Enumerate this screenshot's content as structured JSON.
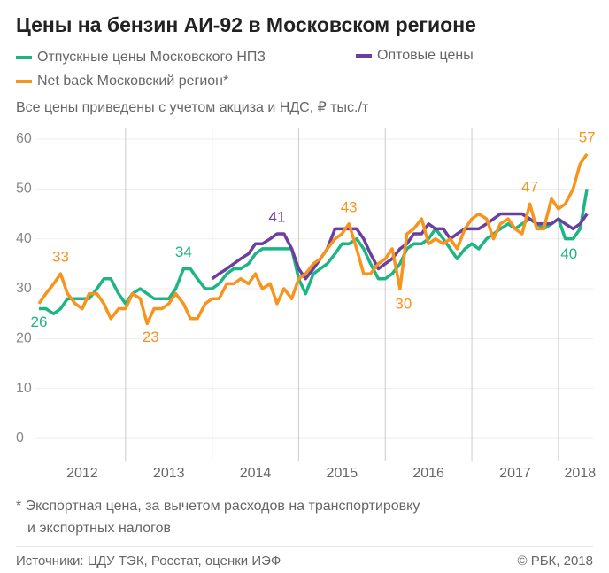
{
  "chart_data": {
    "type": "line",
    "title": "Цены на бензин АИ-92 в Московском регионе",
    "subtitle": "Все цены приведены с учетом акциза и НДС, ₽ тыс./т",
    "footnote": [
      "* Экспортная цена, за вычетом расходов на транспортировку",
      "и экспортных налогов"
    ],
    "source": "Источники: ЦДУ ТЭК, Росстат, оценки ИЭФ",
    "copyright": "© РБК, 2018",
    "x": [
      2012,
      2012.08,
      2012.17,
      2012.25,
      2012.33,
      2012.42,
      2012.5,
      2012.58,
      2012.67,
      2012.75,
      2012.83,
      2012.92,
      2013,
      2013.08,
      2013.17,
      2013.25,
      2013.33,
      2013.42,
      2013.5,
      2013.58,
      2013.67,
      2013.75,
      2013.83,
      2013.92,
      2014,
      2014.08,
      2014.17,
      2014.25,
      2014.33,
      2014.42,
      2014.5,
      2014.58,
      2014.67,
      2014.75,
      2014.83,
      2014.92,
      2015,
      2015.08,
      2015.17,
      2015.25,
      2015.33,
      2015.42,
      2015.5,
      2015.58,
      2015.67,
      2015.75,
      2015.83,
      2015.92,
      2016,
      2016.08,
      2016.17,
      2016.25,
      2016.33,
      2016.42,
      2016.5,
      2016.58,
      2016.67,
      2016.75,
      2016.83,
      2016.92,
      2017,
      2017.08,
      2017.17,
      2017.25,
      2017.33,
      2017.42,
      2017.5,
      2017.58,
      2017.67,
      2017.75,
      2017.83,
      2017.92,
      2018,
      2018.08,
      2018.17,
      2018.25,
      2018.33
    ],
    "series": [
      {
        "name": "Отпускные цены Московского НПЗ",
        "color": "#1db584",
        "values": [
          26,
          26,
          25,
          26,
          28,
          28,
          28,
          28,
          30,
          32,
          32,
          29,
          27,
          29,
          30,
          29,
          28,
          28,
          28,
          30,
          34,
          34,
          32,
          30,
          30,
          31,
          33,
          34,
          34,
          35,
          37,
          38,
          38,
          38,
          38,
          38,
          32,
          29,
          33,
          34,
          35,
          37,
          39,
          39,
          40,
          38,
          35,
          32,
          32,
          33,
          35,
          38,
          39,
          39,
          40,
          42,
          40,
          38,
          36,
          38,
          39,
          38,
          40,
          41,
          42,
          43,
          42,
          43,
          44,
          43,
          42,
          43,
          44,
          40,
          40,
          42,
          50
        ]
      },
      {
        "name": "Оптовые цены",
        "color": "#6b3fa0",
        "values": [
          null,
          null,
          null,
          null,
          null,
          null,
          null,
          null,
          null,
          null,
          null,
          null,
          null,
          null,
          null,
          null,
          null,
          null,
          null,
          null,
          null,
          null,
          null,
          null,
          32,
          33,
          34,
          35,
          36,
          37,
          39,
          39,
          40,
          41,
          41,
          38,
          34,
          32,
          34,
          36,
          38,
          42,
          42,
          42,
          42,
          40,
          37,
          34,
          35,
          36,
          38,
          39,
          41,
          41,
          43,
          42,
          42,
          40,
          41,
          42,
          42,
          42,
          43,
          44,
          45,
          45,
          45,
          45,
          44,
          43,
          43,
          43,
          44,
          43,
          42,
          43,
          45
        ]
      },
      {
        "name": "Net back Московский регион*",
        "color": "#f7941d",
        "values": [
          27,
          29,
          31,
          33,
          29,
          27,
          26,
          29,
          29,
          27,
          24,
          26,
          26,
          29,
          28,
          23,
          26,
          26,
          27,
          29,
          27,
          24,
          24,
          27,
          28,
          28,
          31,
          31,
          32,
          31,
          33,
          30,
          31,
          27,
          30,
          28,
          32,
          33,
          35,
          36,
          38,
          40,
          41,
          43,
          38,
          33,
          33,
          35,
          36,
          38,
          30,
          41,
          42,
          44,
          39,
          40,
          39,
          40,
          38,
          42,
          44,
          45,
          44,
          40,
          43,
          44,
          42,
          41,
          47,
          42,
          42,
          48,
          46,
          47,
          50,
          55,
          57
        ]
      }
    ],
    "xlim": [
      2012,
      2018.4
    ],
    "xticks": [
      {
        "value": 2012.5,
        "label": "2012"
      },
      {
        "value": 2013.5,
        "label": "2013"
      },
      {
        "value": 2014.5,
        "label": "2014"
      },
      {
        "value": 2015.5,
        "label": "2015"
      },
      {
        "value": 2016.5,
        "label": "2016"
      },
      {
        "value": 2017.5,
        "label": "2017"
      },
      {
        "value": 2018.25,
        "label": "2018"
      }
    ],
    "xgrid": [
      2013,
      2014,
      2015,
      2016,
      2017,
      2018
    ],
    "ylim": [
      0,
      60
    ],
    "yticks": [
      0,
      10,
      20,
      30,
      40,
      50,
      60
    ],
    "grid": true
  }
}
